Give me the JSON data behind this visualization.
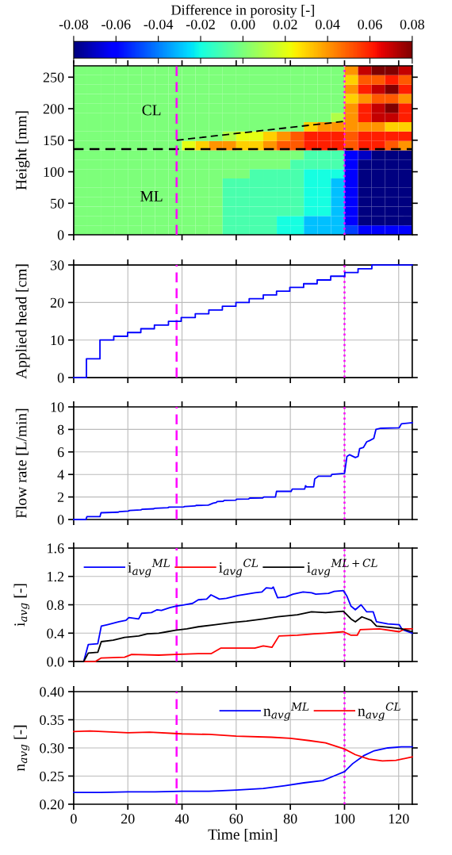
{
  "chart_data": [
    {
      "type": "heatmap",
      "clabel": "Difference in porosity [-]",
      "ylabel": "Height [mm]",
      "cells": [
        [
          0,
          0,
          0,
          0,
          0,
          0,
          0,
          0,
          0,
          0,
          0,
          0,
          0,
          0,
          0,
          0,
          0,
          0,
          0,
          0,
          0.04,
          0.07,
          0.08,
          0.08,
          0.07
        ],
        [
          0,
          0,
          0,
          0,
          0,
          0,
          0,
          0,
          0,
          0,
          0,
          0,
          0,
          0,
          0,
          0,
          0,
          0,
          0,
          0,
          0.03,
          0.05,
          0.05,
          0.06,
          0.05
        ],
        [
          0,
          0,
          0,
          0,
          0,
          0,
          0,
          0,
          0,
          0,
          0,
          0,
          0,
          0,
          0,
          0,
          0,
          0,
          0,
          0,
          0.04,
          0.06,
          0.07,
          0.08,
          0.06
        ],
        [
          0,
          0,
          0,
          0,
          0,
          0,
          0,
          0,
          0,
          0,
          0,
          0,
          0,
          0,
          0,
          0,
          0,
          0,
          0,
          0,
          0.03,
          0.04,
          0.05,
          0.05,
          0.04
        ],
        [
          0,
          0,
          0,
          0,
          0,
          0,
          0,
          0,
          0,
          0,
          0,
          0,
          0,
          0,
          0,
          0,
          0,
          0,
          0,
          0,
          0.04,
          0.06,
          0.07,
          0.08,
          0.06
        ],
        [
          0,
          0,
          0,
          0,
          0,
          0,
          0,
          0,
          0,
          0,
          0,
          0,
          0,
          0,
          0,
          0,
          0,
          0,
          0,
          0.01,
          0.04,
          0.06,
          0.07,
          0.07,
          0.06
        ],
        [
          0,
          0,
          0,
          0,
          0,
          0,
          0,
          0,
          0,
          0,
          0,
          0,
          0,
          0,
          0,
          0,
          0,
          0.03,
          0.04,
          0.04,
          0.04,
          0.04,
          0.04,
          0.03,
          0.03
        ],
        [
          0,
          0,
          0,
          0,
          0,
          0,
          0,
          0,
          0,
          0,
          0,
          0.01,
          0.02,
          0.02,
          0.03,
          0.04,
          0.05,
          0.06,
          0.06,
          0.06,
          0.05,
          0.06,
          0.06,
          0.06,
          0.06
        ],
        [
          0,
          0,
          0,
          0,
          0,
          0,
          0,
          0,
          0.02,
          0.03,
          0.04,
          0.04,
          0.03,
          0.03,
          0.04,
          0.05,
          0.05,
          0.06,
          0.06,
          0.06,
          0.05,
          0.06,
          0.06,
          0.05,
          0.04
        ],
        [
          0,
          0,
          0,
          0,
          0,
          0,
          0,
          0,
          0,
          0,
          0,
          0,
          0,
          0,
          0,
          0,
          0,
          -0.01,
          -0.01,
          -0.01,
          -0.06,
          -0.07,
          -0.08,
          -0.08,
          -0.08
        ],
        [
          0,
          0,
          0,
          0,
          0,
          0,
          0,
          0,
          0,
          0,
          0,
          0,
          0,
          0,
          0,
          0,
          -0.01,
          -0.01,
          -0.01,
          -0.01,
          -0.06,
          -0.08,
          -0.08,
          -0.08,
          -0.08
        ],
        [
          0,
          0,
          0,
          0,
          0,
          0,
          0,
          0,
          0,
          0,
          0,
          0,
          0,
          -0.01,
          -0.01,
          -0.01,
          -0.01,
          -0.02,
          -0.02,
          -0.02,
          -0.06,
          -0.08,
          -0.08,
          -0.08,
          -0.08
        ],
        [
          0,
          0,
          0,
          0,
          0,
          0,
          0,
          0,
          0,
          0,
          0,
          -0.01,
          -0.01,
          -0.01,
          -0.01,
          -0.01,
          -0.01,
          -0.02,
          -0.02,
          -0.03,
          -0.06,
          -0.08,
          -0.08,
          -0.08,
          -0.08
        ],
        [
          0,
          0,
          0,
          0,
          0,
          0,
          0,
          0,
          0,
          0,
          0,
          -0.01,
          -0.01,
          -0.01,
          -0.01,
          -0.01,
          -0.01,
          -0.02,
          -0.02,
          -0.03,
          -0.06,
          -0.08,
          -0.08,
          -0.08,
          -0.08
        ],
        [
          0,
          0,
          0,
          0,
          0,
          0,
          0,
          0,
          0,
          0,
          0,
          -0.01,
          -0.01,
          -0.01,
          -0.01,
          -0.01,
          -0.01,
          -0.02,
          -0.02,
          -0.03,
          -0.06,
          -0.08,
          -0.08,
          -0.08,
          -0.08
        ],
        [
          0,
          0,
          0,
          0,
          0,
          0,
          0,
          0,
          0,
          0,
          0,
          -0.01,
          -0.01,
          -0.01,
          -0.01,
          -0.01,
          -0.01,
          -0.02,
          -0.02,
          -0.03,
          -0.06,
          -0.08,
          -0.08,
          -0.08,
          -0.08
        ],
        [
          0,
          0,
          0,
          0,
          0,
          0,
          0,
          0,
          0,
          0,
          0,
          -0.01,
          -0.01,
          -0.01,
          -0.01,
          -0.02,
          -0.02,
          -0.03,
          -0.03,
          -0.03,
          -0.06,
          -0.08,
          -0.08,
          -0.08,
          -0.08
        ],
        [
          0,
          0,
          0,
          0,
          0,
          0,
          0,
          0,
          0,
          0,
          0,
          -0.01,
          -0.01,
          -0.01,
          -0.01,
          -0.02,
          -0.02,
          -0.03,
          -0.03,
          -0.03,
          -0.05,
          -0.06,
          -0.06,
          -0.06,
          -0.06
        ]
      ],
      "clim": [
        -0.08,
        0.08
      ],
      "cticks": [
        -0.08,
        -0.06,
        -0.04,
        -0.02,
        {
          "value": 0,
          "label": "0.00"
        },
        0.02,
        0.04,
        0.06,
        0.08
      ],
      "series": [
        {
          "type": "line",
          "color": "#000000",
          "line_style": "dashed",
          "x": [
            38,
            100
          ],
          "values": [
            150,
            180
          ]
        }
      ],
      "ref_lines": [
        {
          "axis": "y",
          "value": 136,
          "color": "#000000",
          "line_style": "dashed"
        },
        {
          "axis": "x",
          "value": 38,
          "color": "#ff00ff",
          "line_style": "dashed"
        },
        {
          "axis": "x",
          "value": 100,
          "color": "#ff00ff",
          "line_style": "dotted"
        }
      ],
      "annotations": [
        "CL",
        "ML"
      ],
      "xlim": [
        0,
        125
      ],
      "xticks": [
        0,
        20,
        40,
        60,
        80,
        100,
        120
      ],
      "ylim": [
        0,
        268
      ],
      "yticks": [
        0,
        50,
        100,
        150,
        200,
        250
      ],
      "tick_labels": "y",
      "grid": false
    },
    {
      "type": "step",
      "ylabel": "Applied head [cm]",
      "series": [
        {
          "color": "#0000ff",
          "x": [
            0,
            4.7,
            9.7,
            14.8,
            19.9,
            24.8,
            29.8,
            35.0,
            39.7,
            44.9,
            49.9,
            54.9,
            59.9,
            64.8,
            70.0,
            74.9,
            79.8,
            84.9,
            89.9,
            94.9,
            100.1,
            105,
            110.1,
            125
          ],
          "values": [
            0,
            5,
            10,
            11,
            12,
            13,
            14,
            15,
            16,
            17,
            18,
            19,
            20,
            21,
            22,
            23,
            24,
            25,
            26,
            27,
            28,
            29,
            30,
            30
          ]
        }
      ],
      "ref_lines": [
        {
          "axis": "x",
          "value": 38,
          "color": "#ff00ff",
          "line_style": "dashed"
        },
        {
          "axis": "x",
          "value": 100,
          "color": "#ff00ff",
          "line_style": "dotted"
        }
      ],
      "xlim": [
        0,
        125
      ],
      "xticks": [
        0,
        20,
        40,
        60,
        80,
        100,
        120
      ],
      "ylim": [
        0,
        30
      ],
      "yticks": [
        0,
        10,
        20,
        30
      ],
      "tick_labels": "y",
      "grid": true
    },
    {
      "type": "line",
      "ylabel": "Flow rate [L/min]",
      "series": [
        {
          "color": "#0000ff",
          "x": [
            0,
            4.5,
            4.9,
            9.7,
            10.1,
            16.5,
            16.9,
            20.2,
            20.6,
            24.8,
            25.2,
            29.6,
            30,
            34.8,
            35.2,
            40.6,
            41,
            44.8,
            45.2,
            49.5,
            49.9,
            51.5,
            52.6,
            53,
            55.2,
            55.6,
            59.8,
            60.2,
            64.6,
            65,
            69.8,
            70.2,
            74.5,
            74.9,
            80.3,
            80.7,
            85.3,
            85.6,
            86,
            88.6,
            89,
            90.4,
            95,
            95.3,
            100,
            100.9,
            101.9,
            104,
            105,
            105.6,
            107,
            108.2,
            109.2,
            110.8,
            111.6,
            113.4,
            120.2,
            121,
            125
          ],
          "values": [
            0,
            0,
            0.25,
            0.25,
            0.6,
            0.65,
            0.7,
            0.75,
            0.8,
            0.85,
            0.9,
            0.95,
            1.0,
            1.05,
            1.1,
            1.12,
            1.15,
            1.2,
            1.25,
            1.27,
            1.3,
            1.45,
            1.5,
            1.6,
            1.62,
            1.7,
            1.72,
            1.8,
            1.82,
            1.9,
            1.92,
            2.0,
            2.0,
            2.5,
            2.5,
            2.7,
            2.7,
            3.0,
            2.9,
            2.9,
            3.6,
            3.85,
            3.85,
            4.0,
            4.1,
            5.6,
            5.75,
            5.5,
            5.6,
            6.3,
            6.4,
            6.9,
            7.0,
            7.2,
            8.0,
            8.1,
            8.15,
            8.5,
            8.6
          ]
        }
      ],
      "ref_lines": [
        {
          "axis": "x",
          "value": 38,
          "color": "#ff00ff",
          "line_style": "dashed"
        },
        {
          "axis": "x",
          "value": 100,
          "color": "#ff00ff",
          "line_style": "dotted"
        }
      ],
      "xlim": [
        0,
        125
      ],
      "xticks": [
        0,
        20,
        40,
        60,
        80,
        100,
        120
      ],
      "ylim": [
        0,
        10
      ],
      "yticks": [
        0,
        2,
        4,
        6,
        8,
        10
      ],
      "tick_labels": "y",
      "grid": true
    },
    {
      "type": "line",
      "ylabel": "i$_{avg}$ [-]",
      "legend": "top left",
      "series": [
        {
          "name": "i$_{avg}$$^{ML}$",
          "color": "#0000ff",
          "x": [
            0,
            3.7,
            5.4,
            8.9,
            10.2,
            12.5,
            16.7,
            19.3,
            20.4,
            24,
            25.1,
            28.7,
            30.8,
            32.4,
            35.5,
            37.6,
            40.8,
            43.9,
            46,
            49.1,
            50.7,
            53.8,
            56.4,
            60.6,
            63.8,
            66.9,
            69.5,
            71.1,
            73.2,
            73.7,
            75.3,
            78.4,
            81,
            84.7,
            87.8,
            89.4,
            94.1,
            96.2,
            99.6,
            100.9,
            102.4,
            104,
            106.1,
            108.2,
            110.6,
            111.8,
            116,
            120.2,
            121.3,
            125
          ],
          "values": [
            0,
            0,
            0.24,
            0.25,
            0.5,
            0.52,
            0.56,
            0.58,
            0.62,
            0.6,
            0.68,
            0.69,
            0.73,
            0.72,
            0.76,
            0.78,
            0.8,
            0.82,
            0.87,
            0.88,
            0.94,
            0.88,
            0.89,
            0.93,
            0.95,
            0.97,
            0.98,
            1.04,
            1.03,
            1.05,
            0.9,
            0.91,
            0.95,
            0.98,
            0.97,
            0.95,
            0.96,
            0.99,
            1.0,
            0.92,
            0.78,
            0.73,
            0.8,
            0.7,
            0.7,
            0.56,
            0.53,
            0.52,
            0.45,
            0.4
          ]
        },
        {
          "name": "i$_{avg}$$^{CL}$",
          "color": "#ff0000",
          "x": [
            0,
            8,
            10.2,
            18.8,
            21.4,
            31.4,
            37.6,
            46,
            50.7,
            54.4,
            66.9,
            70,
            73.2,
            75.8,
            82.6,
            88.8,
            93,
            99.6,
            102.4,
            104.7,
            105.8,
            112.9,
            120.2,
            122.3,
            125
          ],
          "values": [
            0,
            0,
            0.05,
            0.06,
            0.1,
            0.09,
            0.1,
            0.11,
            0.11,
            0.19,
            0.19,
            0.22,
            0.2,
            0.36,
            0.37,
            0.39,
            0.4,
            0.42,
            0.37,
            0.37,
            0.45,
            0.46,
            0.42,
            0.46,
            0.46
          ]
        },
        {
          "name": "i$_{avg}$$^{ML+CL}$",
          "color": "#000000",
          "x": [
            0,
            3.7,
            5.4,
            8.9,
            10.2,
            14.6,
            18.8,
            24,
            27.2,
            31.4,
            34.5,
            37.6,
            41.8,
            46,
            52.3,
            58.5,
            63.8,
            70,
            75.3,
            82.6,
            87.8,
            93,
            99.6,
            102.4,
            104,
            106.4,
            109.8,
            111.8,
            117.1,
            121.3,
            125
          ],
          "values": [
            0,
            0,
            0.12,
            0.13,
            0.28,
            0.3,
            0.34,
            0.36,
            0.39,
            0.4,
            0.42,
            0.44,
            0.46,
            0.49,
            0.52,
            0.55,
            0.57,
            0.6,
            0.63,
            0.66,
            0.7,
            0.69,
            0.71,
            0.6,
            0.56,
            0.63,
            0.58,
            0.5,
            0.48,
            0.46,
            0.42
          ]
        }
      ],
      "ref_lines": [
        {
          "axis": "x",
          "value": 38,
          "color": "#ff00ff",
          "line_style": "dashed"
        },
        {
          "axis": "x",
          "value": 100,
          "color": "#ff00ff",
          "line_style": "dotted"
        }
      ],
      "xlim": [
        0,
        125
      ],
      "xticks": [
        0,
        20,
        40,
        60,
        80,
        100,
        120
      ],
      "ylim": [
        0,
        1.6
      ],
      "yticks": [
        {
          "value": 0,
          "label": "0.0"
        },
        0.4,
        0.8,
        1.2,
        1.6
      ],
      "tick_labels": "y",
      "grid": true
    },
    {
      "type": "line",
      "ylabel": "n$_{avg}$ [-]",
      "xlabel": "Time [min]",
      "legend": "top right",
      "series": [
        {
          "name": "n$_{avg}$$^{ML}$",
          "color": "#0000ff",
          "x": [
            0,
            10,
            20,
            30,
            40,
            50,
            60,
            70,
            78,
            85,
            92,
            96,
            100,
            103,
            107,
            111,
            116,
            121,
            125
          ],
          "values": [
            0.221,
            0.221,
            0.222,
            0.222,
            0.223,
            0.223,
            0.225,
            0.228,
            0.233,
            0.238,
            0.242,
            0.25,
            0.258,
            0.272,
            0.286,
            0.295,
            0.3,
            0.302,
            0.302
          ]
        },
        {
          "name": "n$_{avg}$$^{CL}$",
          "color": "#ff0000",
          "x": [
            0,
            6,
            20,
            28,
            40,
            50,
            60,
            73,
            80,
            87,
            93,
            100,
            104,
            109,
            114,
            119,
            125
          ],
          "values": [
            0.329,
            0.33,
            0.327,
            0.328,
            0.325,
            0.324,
            0.321,
            0.319,
            0.317,
            0.313,
            0.309,
            0.298,
            0.288,
            0.28,
            0.277,
            0.278,
            0.284
          ]
        }
      ],
      "ref_lines": [
        {
          "axis": "x",
          "value": 38,
          "color": "#ff00ff",
          "line_style": "dashed"
        },
        {
          "axis": "x",
          "value": 100,
          "color": "#ff00ff",
          "line_style": "dotted"
        }
      ],
      "xlim": [
        0,
        125
      ],
      "xticks": [
        0,
        20,
        40,
        60,
        80,
        100,
        120
      ],
      "ylim": [
        0.2,
        0.4
      ],
      "yticks": [
        {
          "value": 0.2,
          "label": "0.20"
        },
        {
          "value": 0.25,
          "label": "0.25"
        },
        {
          "value": 0.3,
          "label": "0.30"
        },
        {
          "value": 0.35,
          "label": "0.35"
        },
        {
          "value": 0.4,
          "label": "0.40"
        }
      ],
      "grid": true
    }
  ]
}
